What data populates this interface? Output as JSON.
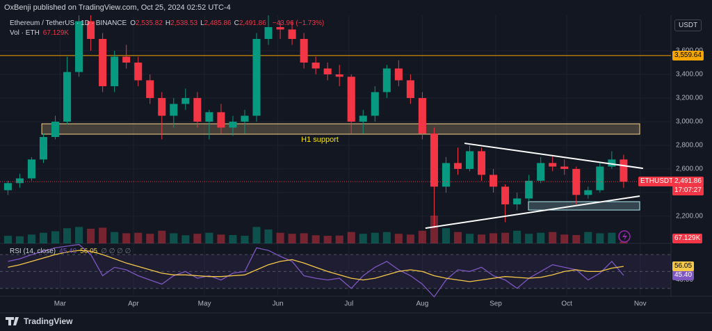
{
  "header": {
    "publisher": "OxBenji published on TradingView.com, Oct 25, 2024 02:52 UTC-4"
  },
  "footer": "TradingView",
  "chart_data": [
    {
      "type": "candlestick",
      "title": "Ethereum / TetherUS · 1D · BINANCE",
      "ohlc": [
        {
          "key": "O",
          "value": "2,535.82"
        },
        {
          "key": "H",
          "value": "2,538.53"
        },
        {
          "key": "L",
          "value": "2,485.86"
        },
        {
          "key": "C",
          "value": "2,491.86"
        }
      ],
      "change": "−43.96 (−1.73%)",
      "volume_title": "Vol · ETH",
      "volume_last_label": "67.129K",
      "currency": "USDT",
      "up_color": "#089981",
      "down_color": "#f23645",
      "x": [
        39,
        44,
        49,
        54,
        59,
        64,
        69,
        74,
        79,
        84,
        89,
        94,
        99,
        104,
        109,
        114,
        119,
        124,
        129,
        134,
        139,
        144,
        149,
        154,
        159,
        164,
        169,
        174,
        179,
        184,
        189,
        194,
        199,
        204,
        209,
        214,
        219,
        224,
        229,
        234,
        239,
        244,
        249,
        254,
        259,
        264,
        269,
        274,
        279,
        284,
        289,
        294,
        299
      ],
      "open": [
        2420,
        2480,
        2520,
        2680,
        2870,
        3000,
        3420,
        3850,
        3700,
        3300,
        3550,
        3500,
        3350,
        3200,
        3050,
        3150,
        3200,
        3000,
        3080,
        2950,
        3000,
        3050,
        3700,
        3800,
        3780,
        3700,
        3500,
        3450,
        3400,
        3380,
        3000,
        3050,
        3250,
        3450,
        3350,
        3200,
        2900,
        2450,
        2650,
        2600,
        2750,
        2550,
        2450,
        2300,
        2350,
        2500,
        2650,
        2620,
        2600,
        2380,
        2420,
        2620,
        2680
      ],
      "high": [
        2500,
        2560,
        2700,
        2900,
        3050,
        3550,
        3900,
        3900,
        3750,
        3600,
        3650,
        3550,
        3400,
        3250,
        3200,
        3280,
        3250,
        3100,
        3150,
        3050,
        3100,
        3750,
        3900,
        3850,
        3850,
        3750,
        3550,
        3500,
        3480,
        3400,
        3100,
        3300,
        3480,
        3520,
        3400,
        3250,
        2950,
        2700,
        2780,
        2800,
        2780,
        2600,
        2470,
        2400,
        2550,
        2700,
        2720,
        2680,
        2620,
        2450,
        2650,
        2750,
        2720
      ],
      "low": [
        2380,
        2440,
        2500,
        2650,
        2850,
        2980,
        3380,
        3600,
        3250,
        3250,
        3450,
        3300,
        3150,
        2850,
        2950,
        3100,
        2950,
        2850,
        2900,
        2880,
        2900,
        3000,
        3650,
        3700,
        3650,
        3450,
        3400,
        3350,
        3300,
        2900,
        2900,
        3000,
        3200,
        3300,
        3150,
        2850,
        2100,
        2400,
        2550,
        2580,
        2500,
        2400,
        2150,
        2250,
        2330,
        2480,
        2580,
        2550,
        2300,
        2350,
        2400,
        2600,
        2440
      ],
      "close": [
        2480,
        2520,
        2680,
        2870,
        3000,
        3420,
        3850,
        3700,
        3300,
        3550,
        3500,
        3350,
        3200,
        3050,
        3150,
        3200,
        3000,
        3080,
        2950,
        3000,
        3050,
        3700,
        3800,
        3780,
        3700,
        3500,
        3450,
        3400,
        3380,
        3000,
        3050,
        3250,
        3450,
        3350,
        3200,
        2900,
        2450,
        2650,
        2600,
        2750,
        2550,
        2450,
        2300,
        2350,
        2500,
        2650,
        2620,
        2600,
        2380,
        2420,
        2620,
        2680,
        2491.86
      ],
      "volume": [
        300,
        280,
        350,
        420,
        480,
        600,
        650,
        580,
        620,
        450,
        400,
        420,
        380,
        500,
        400,
        320,
        380,
        420,
        350,
        330,
        300,
        650,
        550,
        420,
        380,
        400,
        320,
        300,
        310,
        450,
        380,
        420,
        450,
        380,
        350,
        500,
        1100,
        600,
        450,
        380,
        350,
        400,
        420,
        500,
        380,
        420,
        450,
        350,
        330,
        450,
        400,
        420,
        67.129
      ],
      "xlim": [
        38,
        319
      ],
      "ylim": [
        1970,
        3900
      ],
      "yticks": [
        {
          "value": 2200,
          "label": "2,200.00"
        },
        {
          "value": 2400,
          "label": "2,400.00"
        },
        {
          "value": 2600,
          "label": "2,600.00"
        },
        {
          "value": 2800,
          "label": "2,800.00"
        },
        {
          "value": 3000,
          "label": "3,000.00"
        },
        {
          "value": 3200,
          "label": "3,200.00"
        },
        {
          "value": 3400,
          "label": "3,400.00"
        },
        {
          "value": 3600,
          "label": "3,600.00"
        }
      ],
      "xticks": [
        {
          "value": 61,
          "label": "Mar"
        },
        {
          "value": 92,
          "label": "Apr"
        },
        {
          "value": 122,
          "label": "May"
        },
        {
          "value": 153,
          "label": "Jun"
        },
        {
          "value": 183,
          "label": "Jul"
        },
        {
          "value": 214,
          "label": "Aug"
        },
        {
          "value": 245,
          "label": "Sep"
        },
        {
          "value": 275,
          "label": "Oct"
        },
        {
          "value": 306,
          "label": "Nov"
        }
      ],
      "grid": true,
      "price_line": {
        "value": 3559.64,
        "label": "3,559.64",
        "color": "#f7a600"
      },
      "last_price": {
        "value": 2491.86,
        "label": "2,491.86"
      },
      "symbol_tag": "ETHUSDT",
      "countdown": "17:07:27",
      "zones": [
        {
          "label": "H1 support",
          "low": 2894,
          "high": 2982,
          "start": 53.3,
          "end": 305.8,
          "color": "#f7d38b"
        },
        {
          "low": 2252,
          "high": 2323,
          "start": 258.8,
          "end": 305.8,
          "color": "#b2ebf2"
        }
      ],
      "trendlines": [
        {
          "x": [
            231.8,
            307.2
          ],
          "y": [
            2817,
            2605
          ]
        },
        {
          "x": [
            215.3,
            305.8
          ],
          "y": [
            2099,
            2370
          ]
        }
      ]
    },
    {
      "type": "line",
      "header_suffix": "∅ ∅ ∅ ∅",
      "x": [
        39,
        44,
        49,
        54,
        59,
        64,
        69,
        74,
        79,
        84,
        89,
        94,
        99,
        104,
        109,
        114,
        119,
        124,
        129,
        134,
        139,
        144,
        149,
        154,
        159,
        164,
        169,
        174,
        179,
        184,
        189,
        194,
        199,
        204,
        209,
        214,
        219,
        224,
        229,
        234,
        239,
        244,
        249,
        254,
        259,
        264,
        269,
        274,
        279,
        284,
        289,
        294,
        299
      ],
      "series": [
        {
          "name": "RSI (14, close)",
          "color": "#7e57c2",
          "last_value": {
            "value": 45.4,
            "label": "45.40"
          },
          "values": [
            62,
            65,
            70,
            74,
            78,
            80,
            82,
            70,
            45,
            55,
            52,
            45,
            40,
            35,
            45,
            50,
            42,
            45,
            40,
            48,
            50,
            78,
            75,
            68,
            62,
            45,
            42,
            40,
            42,
            30,
            45,
            55,
            62,
            52,
            45,
            35,
            20,
            40,
            52,
            50,
            55,
            45,
            40,
            30,
            42,
            50,
            58,
            55,
            52,
            40,
            48,
            62,
            45.4
          ]
        },
        {
          "color": "#f7c948",
          "last_value": {
            "value": 56.05,
            "label": "56.05"
          },
          "values": [
            55,
            58,
            62,
            66,
            70,
            73,
            75,
            74,
            70,
            65,
            60,
            56,
            52,
            48,
            46,
            46,
            45,
            44,
            44,
            45,
            46,
            52,
            58,
            62,
            64,
            60,
            55,
            50,
            46,
            42,
            40,
            42,
            46,
            50,
            52,
            50,
            45,
            42,
            40,
            38,
            40,
            42,
            44,
            43,
            42,
            43,
            46,
            50,
            52,
            50,
            50,
            54,
            56.05
          ]
        }
      ],
      "xlim": [
        38,
        319
      ],
      "ylim": [
        24,
        80
      ],
      "yticks": [
        {
          "value": 40,
          "label": "40.00"
        }
      ],
      "levels": [
        30,
        50,
        70
      ]
    }
  ]
}
